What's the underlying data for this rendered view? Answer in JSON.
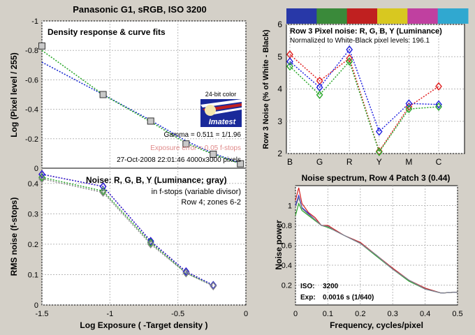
{
  "page": {
    "title": "Panasonic G1, sRGB, ISO 3200",
    "title_color": "#6a0a6a"
  },
  "badge": {
    "label": "24-bit color",
    "brand": "Imatest"
  },
  "chart_data": [
    {
      "id": "density",
      "type": "scatter",
      "title": "Density response & curve fits",
      "xlabel": "",
      "ylabel": "Log (Pixel level / 255)",
      "xlim": [
        -1.5,
        0
      ],
      "ylim": [
        -1,
        0
      ],
      "yticks": [
        0,
        -0.2,
        -0.4,
        -0.6,
        -0.8,
        -1
      ],
      "points": {
        "x": [
          -1.5,
          -1.05,
          -0.7,
          -0.44,
          -0.24,
          -0.04
        ],
        "y": [
          -0.83,
          -0.5,
          -0.32,
          -0.165,
          -0.095,
          -0.03
        ]
      },
      "fits": [
        {
          "color": "#1a2ad0",
          "x": [
            -1.5,
            -1.05,
            -0.7,
            -0.44,
            -0.24,
            -0.04
          ],
          "y": [
            -0.72,
            -0.5,
            -0.325,
            -0.185,
            -0.1,
            -0.035
          ]
        },
        {
          "color": "#2aa82a",
          "x": [
            -1.5,
            -1.05,
            -0.7,
            -0.44,
            -0.24,
            -0.04
          ],
          "y": [
            -0.8,
            -0.5,
            -0.315,
            -0.17,
            -0.095,
            -0.03
          ]
        }
      ],
      "annotations": {
        "gamma": "Gamma = 0.511 = 1/1.96",
        "exposure_error": "Exposure error = 0.05 f-stops",
        "datetime": "27-Oct-2008 22:01:46   4000x3000 pixels"
      },
      "grid": true
    },
    {
      "id": "rms-noise",
      "type": "line",
      "title": "Noise: R, G, B, Y (Luminance; gray)",
      "subtitle": "in f-stops (variable divisor)",
      "note": "Row 4; zones 6-2",
      "xlabel": "Log Exposure ( -Target density )",
      "ylabel": "RMS noise (f-stops)",
      "xlim": [
        -1.5,
        0
      ],
      "ylim": [
        0,
        0.45
      ],
      "xticks": [
        -1.5,
        -1,
        -0.5,
        0
      ],
      "yticks": [
        0,
        0.1,
        0.2,
        0.3,
        0.4
      ],
      "x": [
        -1.5,
        -1.05,
        -0.7,
        -0.44,
        -0.24
      ],
      "series": [
        {
          "color": "#e02020",
          "values": [
            0.43,
            0.39,
            0.21,
            0.11,
            0.065
          ]
        },
        {
          "color": "#2aa82a",
          "values": [
            0.42,
            0.375,
            0.205,
            0.105,
            0.065
          ]
        },
        {
          "color": "#2020e0",
          "values": [
            0.43,
            0.39,
            0.21,
            0.11,
            0.065
          ]
        },
        {
          "color": "#888888",
          "values": [
            0.415,
            0.37,
            0.2,
            0.105,
            0.062
          ]
        }
      ],
      "grid": true
    },
    {
      "id": "row3-noise",
      "type": "line",
      "title": "Row 3 Pixel noise: R, G, B, Y (Luminance)",
      "subtitle": "Normalized to White-Black pixel levels: 196.1",
      "xlabel": "",
      "ylabel": "Row 3 Noise (% of White - Black)",
      "categories": [
        "B",
        "G",
        "R",
        "Y",
        "M",
        "C"
      ],
      "ylim": [
        2,
        6
      ],
      "yticks": [
        2,
        3,
        4,
        5,
        6
      ],
      "swatches": [
        "#2838a8",
        "#3a8a3a",
        "#c02020",
        "#d8c820",
        "#c040a0",
        "#30a8d0"
      ],
      "series": [
        {
          "color": "#e02020",
          "values": [
            5.07,
            4.25,
            4.95,
            2.07,
            3.45,
            4.08
          ]
        },
        {
          "color": "#2020e0",
          "values": [
            4.85,
            4.05,
            5.22,
            2.68,
            3.55,
            3.52
          ]
        },
        {
          "color": "#2aa82a",
          "values": [
            4.7,
            3.82,
            4.85,
            2.05,
            3.38,
            3.45
          ]
        }
      ],
      "grid": true
    },
    {
      "id": "noise-spectrum",
      "type": "line",
      "title": "Noise spectrum, Row 4 Patch 3 (0.44)",
      "xlabel": "Frequency, cycles/pixel",
      "ylabel": "Noise power",
      "xlim": [
        0,
        0.5
      ],
      "ylim": [
        0,
        1.2
      ],
      "xticks": [
        0,
        0.1,
        0.2,
        0.3,
        0.4,
        0.5
      ],
      "yticks": [
        0.2,
        0.4,
        0.6,
        0.8,
        1
      ],
      "iso_label": "ISO:",
      "iso_value": "3200",
      "exp_label": "Exp:",
      "exp_value": "0.0016 s  (1/640)",
      "series": [
        {
          "color": "#d02020",
          "x": [
            0,
            0.01,
            0.02,
            0.04,
            0.06,
            0.08,
            0.1,
            0.12,
            0.15,
            0.2,
            0.25,
            0.3,
            0.35,
            0.4,
            0.45,
            0.5
          ],
          "values": [
            1.05,
            1.18,
            1.02,
            0.93,
            0.88,
            0.8,
            0.8,
            0.76,
            0.7,
            0.63,
            0.5,
            0.37,
            0.25,
            0.17,
            0.12,
            0.13
          ]
        },
        {
          "color": "#2aa82a",
          "x": [
            0,
            0.01,
            0.02,
            0.04,
            0.06,
            0.08,
            0.1,
            0.12,
            0.15,
            0.2,
            0.25,
            0.3,
            0.35,
            0.4,
            0.45,
            0.5
          ],
          "values": [
            0.9,
            1.02,
            0.95,
            0.9,
            0.85,
            0.8,
            0.78,
            0.75,
            0.7,
            0.62,
            0.49,
            0.36,
            0.24,
            0.16,
            0.12,
            0.13
          ]
        },
        {
          "color": "#2020d0",
          "x": [
            0,
            0.01,
            0.02,
            0.04,
            0.06,
            0.08,
            0.1,
            0.12,
            0.15,
            0.2,
            0.25,
            0.3,
            0.35,
            0.4,
            0.45,
            0.5
          ],
          "values": [
            1.0,
            1.1,
            0.98,
            0.92,
            0.86,
            0.8,
            0.79,
            0.75,
            0.7,
            0.62,
            0.5,
            0.36,
            0.25,
            0.16,
            0.12,
            0.13
          ]
        },
        {
          "color": "#888888",
          "x": [
            0,
            0.01,
            0.02,
            0.04,
            0.06,
            0.08,
            0.1,
            0.12,
            0.15,
            0.2,
            0.25,
            0.3,
            0.35,
            0.4,
            0.45,
            0.5
          ],
          "values": [
            0.98,
            1.08,
            0.97,
            0.91,
            0.86,
            0.8,
            0.79,
            0.75,
            0.7,
            0.62,
            0.5,
            0.36,
            0.25,
            0.16,
            0.12,
            0.13
          ]
        }
      ],
      "grid": true
    }
  ]
}
